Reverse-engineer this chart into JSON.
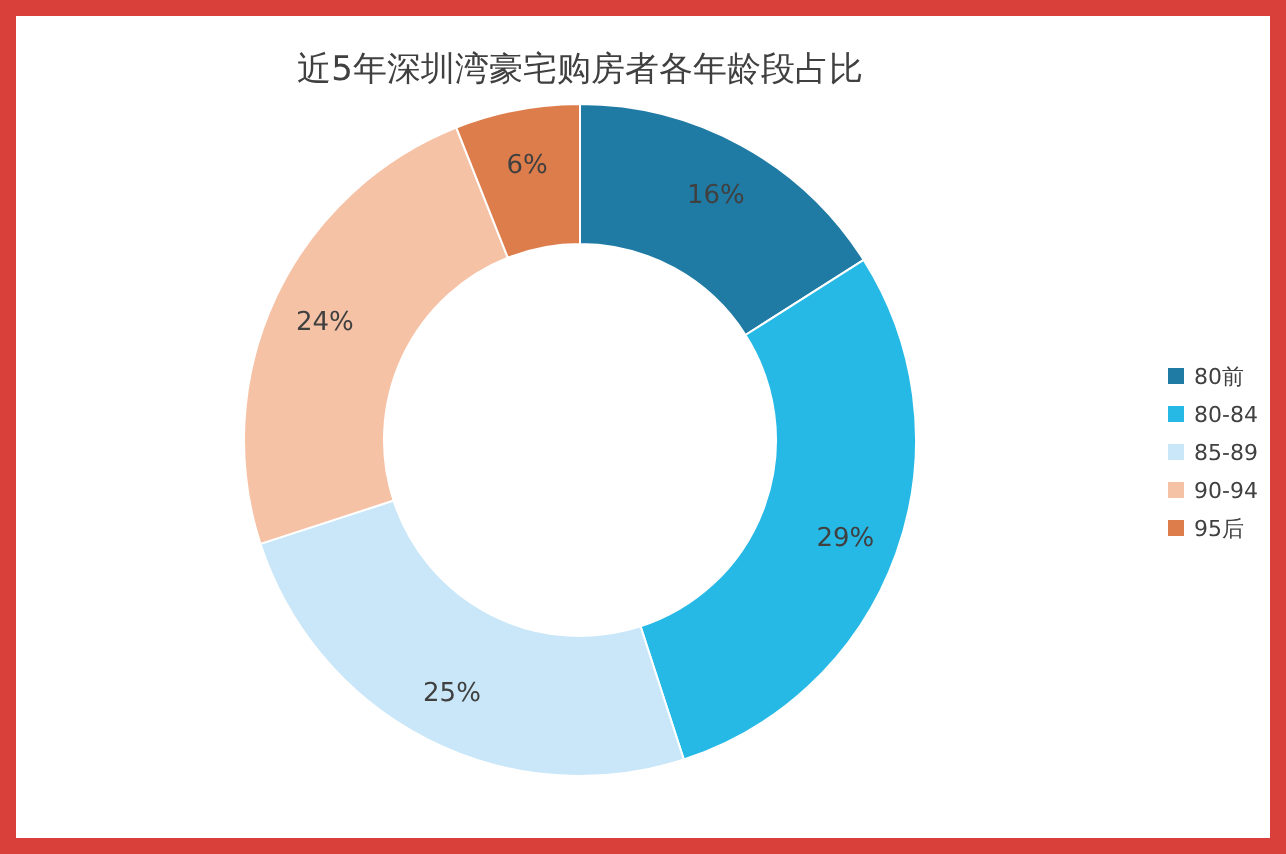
{
  "chart_data": {
    "type": "donut",
    "title": "近5年深圳湾豪宅购房者各年龄段占比",
    "categories": [
      "80前",
      "80-84",
      "85-89",
      "90-94",
      "95后"
    ],
    "values": [
      16,
      29,
      25,
      24,
      6
    ],
    "colors": [
      "#1f7ba4",
      "#27b9e6",
      "#c9e7f8",
      "#f6c2a6",
      "#dd7d4b"
    ],
    "value_labels": [
      "16%",
      "29%",
      "25%",
      "24%",
      "6%"
    ],
    "legend": "right"
  }
}
